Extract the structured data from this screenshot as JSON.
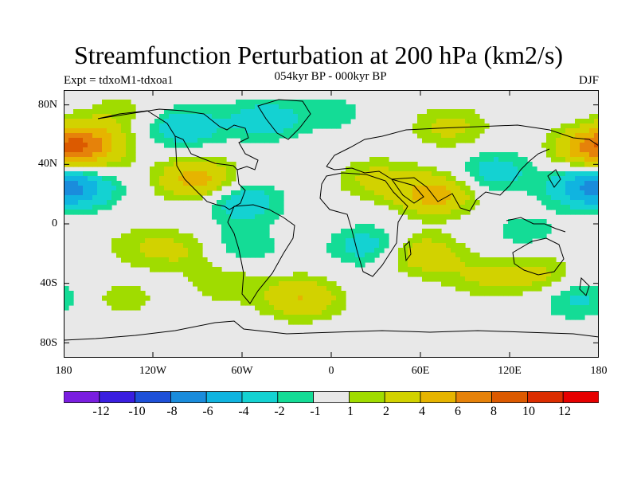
{
  "title": "Streamfunction Perturbation at 200 hPa (km2/s)",
  "subtitle": "054kyr BP - 000kyr BP",
  "left_label": "Expt = tdxoM1-tdxoa1",
  "right_label": "DJF",
  "chart_data": {
    "type": "heatmap",
    "projection": "cylindrical-equidistant",
    "lon_range": [
      -180,
      180
    ],
    "lat_range": [
      -90,
      90
    ],
    "x_ticks": [
      "180",
      "120W",
      "60W",
      "0",
      "60E",
      "120E",
      "180"
    ],
    "y_ticks": [
      "80N",
      "40N",
      "0",
      "40S",
      "80S"
    ],
    "colorbar": {
      "labels": [
        "-12",
        "-10",
        "-8",
        "-6",
        "-4",
        "-2",
        "-1",
        "1",
        "2",
        "4",
        "6",
        "8",
        "10",
        "12"
      ],
      "levels": [
        -12,
        -10,
        -8,
        -6,
        -4,
        -2,
        -1,
        1,
        2,
        4,
        6,
        8,
        10,
        12
      ],
      "colors": [
        "#7a1ee0",
        "#3a1ee0",
        "#1e50d8",
        "#1a8cdc",
        "#10b4e0",
        "#14d2d2",
        "#14dc96",
        "#e8e8e8",
        "#a0dc00",
        "#d2d200",
        "#e6b400",
        "#e6820a",
        "#dc5a00",
        "#dc2d00",
        "#e60000"
      ]
    },
    "anomaly_centers": [
      {
        "lon": -165,
        "lat": 55,
        "value": 5
      },
      {
        "lon": -170,
        "lat": 25,
        "value": -5
      },
      {
        "lon": -160,
        "lat": 40,
        "value": 1.5
      },
      {
        "lon": -90,
        "lat": 30,
        "value": 5
      },
      {
        "lon": -60,
        "lat": 15,
        "value": -3.5
      },
      {
        "lon": -100,
        "lat": 65,
        "value": -3.5
      },
      {
        "lon": -45,
        "lat": 70,
        "value": -3
      },
      {
        "lon": -140,
        "lat": 75,
        "value": 1.5
      },
      {
        "lon": -130,
        "lat": -15,
        "value": 1.5
      },
      {
        "lon": -60,
        "lat": -15,
        "value": -2
      },
      {
        "lon": -100,
        "lat": -18,
        "value": 2
      },
      {
        "lon": -140,
        "lat": -50,
        "value": 1.5
      },
      {
        "lon": -70,
        "lat": -40,
        "value": 1.8
      },
      {
        "lon": -20,
        "lat": -50,
        "value": 4
      },
      {
        "lon": 30,
        "lat": 30,
        "value": 2.5
      },
      {
        "lon": 70,
        "lat": 20,
        "value": 5
      },
      {
        "lon": 80,
        "lat": 65,
        "value": 2.5
      },
      {
        "lon": 25,
        "lat": -15,
        "value": -3
      },
      {
        "lon": 60,
        "lat": -20,
        "value": 3.5
      },
      {
        "lon": 100,
        "lat": -35,
        "value": 2
      },
      {
        "lon": 110,
        "lat": 35,
        "value": -3
      },
      {
        "lon": 170,
        "lat": 25,
        "value": -4
      },
      {
        "lon": 175,
        "lat": 50,
        "value": 5
      },
      {
        "lon": 140,
        "lat": -35,
        "value": 2.5
      },
      {
        "lon": 165,
        "lat": -50,
        "value": -2.5
      },
      {
        "lon": 130,
        "lat": -5,
        "value": -1.5
      },
      {
        "lon": 0,
        "lat": 75,
        "value": -1.5
      }
    ]
  }
}
